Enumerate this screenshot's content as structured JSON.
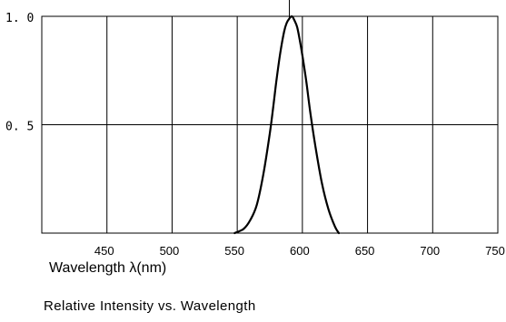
{
  "chart_data": {
    "type": "line",
    "xlabel": "Wavelength λ(nm)",
    "caption": "Relative Intensity vs. Wavelength",
    "xlim": [
      400,
      750
    ],
    "ylim": [
      0,
      1.0
    ],
    "x_ticks": [
      {
        "value": 450,
        "label": "450"
      },
      {
        "value": 500,
        "label": "500"
      },
      {
        "value": 550,
        "label": "550"
      },
      {
        "value": 600,
        "label": "600"
      },
      {
        "value": 650,
        "label": "650"
      },
      {
        "value": 700,
        "label": "700"
      },
      {
        "value": 750,
        "label": "750"
      }
    ],
    "y_ticks": [
      {
        "value": 0.5,
        "label": "0. 5"
      },
      {
        "value": 1.0,
        "label": "1. 0"
      }
    ],
    "grid": true,
    "peak_marker_x": 590,
    "series": [
      {
        "x": [
          548,
          555,
          560,
          565,
          570,
          575,
          578,
          580,
          583,
          586,
          588,
          590,
          592,
          594,
          596,
          598,
          600,
          603,
          606,
          610,
          615,
          620,
          625,
          628
        ],
        "y": [
          0.0,
          0.02,
          0.06,
          0.13,
          0.27,
          0.46,
          0.6,
          0.7,
          0.83,
          0.93,
          0.97,
          0.99,
          1.0,
          0.98,
          0.95,
          0.89,
          0.82,
          0.7,
          0.56,
          0.4,
          0.23,
          0.11,
          0.03,
          0.0
        ],
        "color": "#000000"
      }
    ]
  }
}
